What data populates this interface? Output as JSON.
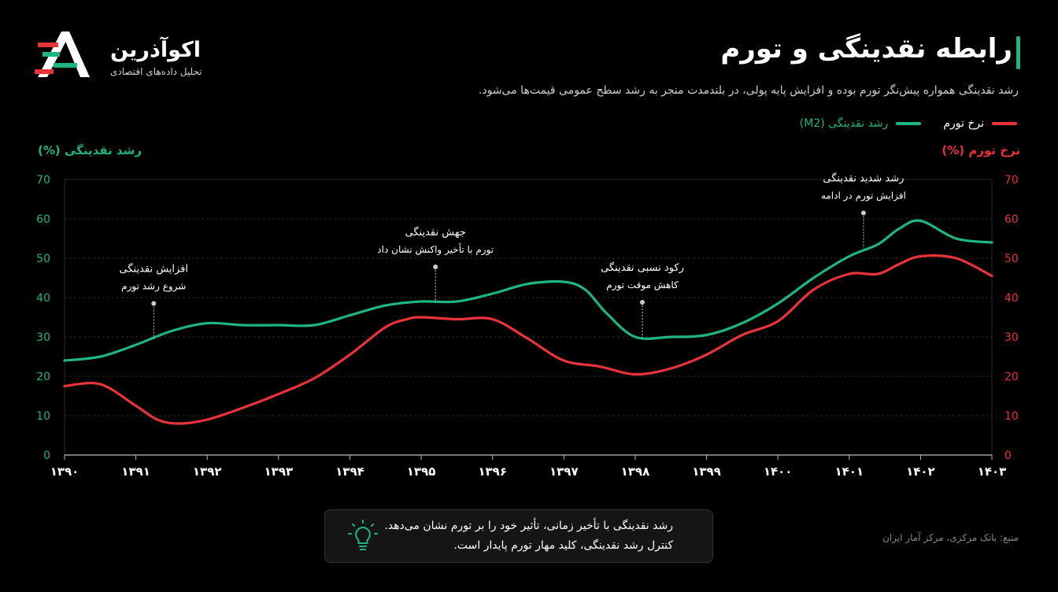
{
  "brand": {
    "name": "اکوآذرین",
    "tagline": "تحلیل داده‌های اقتصادی"
  },
  "header": {
    "title": "رابطه نقدینگی و تورم",
    "subtitle": "رشد نقدینگی همواره پیش‌نگر تورم بوده و افزایش پایه پولی، در بلندمدت منجر به رشد سطح عمومی قیمت‌ها می‌شود."
  },
  "legend": {
    "m2": "رشد نقدینگی (M2)",
    "inflation": "نرخ تورم"
  },
  "colors": {
    "m2": "#1fb57f",
    "inflation": "#e8333a",
    "background": "#000000"
  },
  "chart_data": {
    "type": "line",
    "x_ticks": [
      "۱۳۹۰",
      "۱۳۹۱",
      "۱۳۹۲",
      "۱۳۹۳",
      "۱۳۹۴",
      "۱۳۹۵",
      "۱۳۹۶",
      "۱۳۹۷",
      "۱۳۹۸",
      "۱۳۹۹",
      "۱۴۰۰",
      "۱۴۰۱",
      "۱۴۰۲",
      "۱۴۰۳"
    ],
    "xlim": [
      1390,
      1403
    ],
    "ylim": [
      0,
      70
    ],
    "y_ticks": [
      0,
      10,
      20,
      30,
      40,
      50,
      60,
      70
    ],
    "ylabel_left": "رشد نقدینگی  (%)",
    "ylabel_right": "نرخ تورم  (%)",
    "grid": true,
    "series": [
      {
        "name": "رشد نقدینگی (M2)",
        "key": "m2",
        "x": [
          1390,
          1390.5,
          1391,
          1391.5,
          1392,
          1392.5,
          1393,
          1393.5,
          1394,
          1394.5,
          1395,
          1395.5,
          1396,
          1396.5,
          1397,
          1397.3,
          1397.6,
          1398,
          1398.5,
          1399,
          1399.5,
          1400,
          1400.5,
          1401,
          1401.4,
          1401.7,
          1402,
          1402.5,
          1403
        ],
        "values": [
          24,
          25,
          28,
          31.5,
          33.5,
          33,
          33,
          33,
          35.5,
          38,
          39,
          39,
          41,
          43.5,
          44,
          42,
          36,
          30,
          30,
          30.5,
          33.5,
          38.5,
          45,
          50.5,
          53.5,
          57.5,
          59.5,
          55,
          54
        ]
      },
      {
        "name": "نرخ تورم",
        "key": "inflation",
        "x": [
          1390,
          1390.5,
          1391,
          1391.3,
          1391.6,
          1392,
          1392.5,
          1393,
          1393.5,
          1394,
          1394.5,
          1394.8,
          1395,
          1395.5,
          1396,
          1396.5,
          1397,
          1397.5,
          1398,
          1398.5,
          1399,
          1399.5,
          1400,
          1400.5,
          1401,
          1401.4,
          1401.7,
          1402,
          1402.5,
          1403
        ],
        "values": [
          17.5,
          18,
          12.5,
          9,
          8,
          9,
          12,
          15.5,
          19.5,
          25.5,
          32.5,
          34.5,
          35,
          34.5,
          34.5,
          29.5,
          24,
          22.5,
          20.5,
          22,
          25.5,
          30.5,
          34,
          42,
          46,
          46,
          48.5,
          50.5,
          50,
          45.5
        ]
      }
    ],
    "annotations": [
      {
        "line1": "افزایش نقدینگی",
        "line2": "شروع رشد تورم",
        "x": 1391.25,
        "y": 29.5
      },
      {
        "line1": "جهش نقدینگی",
        "line2": "تورم با تأخیر واکنش نشان داد",
        "x": 1395.2,
        "y": 38.8
      },
      {
        "line1": "رکود نسبی نقدینگی",
        "line2": "کاهش موقت تورم",
        "x": 1398.1,
        "y": 29.8
      },
      {
        "line1": "رشد شدید نقدینگی",
        "line2": "افزایش تورم در ادامه",
        "x": 1401.2,
        "y": 52.5
      }
    ]
  },
  "insight": {
    "line1": "رشد نقدینگی با تأخیر زمانی، تأثیر خود را بر تورم نشان می‌دهد.",
    "line2": "کنترل رشد نقدینگی، کلید مهار تورم پایدار است.",
    "icon": "lightbulb-icon"
  },
  "source": "منبع: بانک مرکزی، مرکز آمار ایران"
}
